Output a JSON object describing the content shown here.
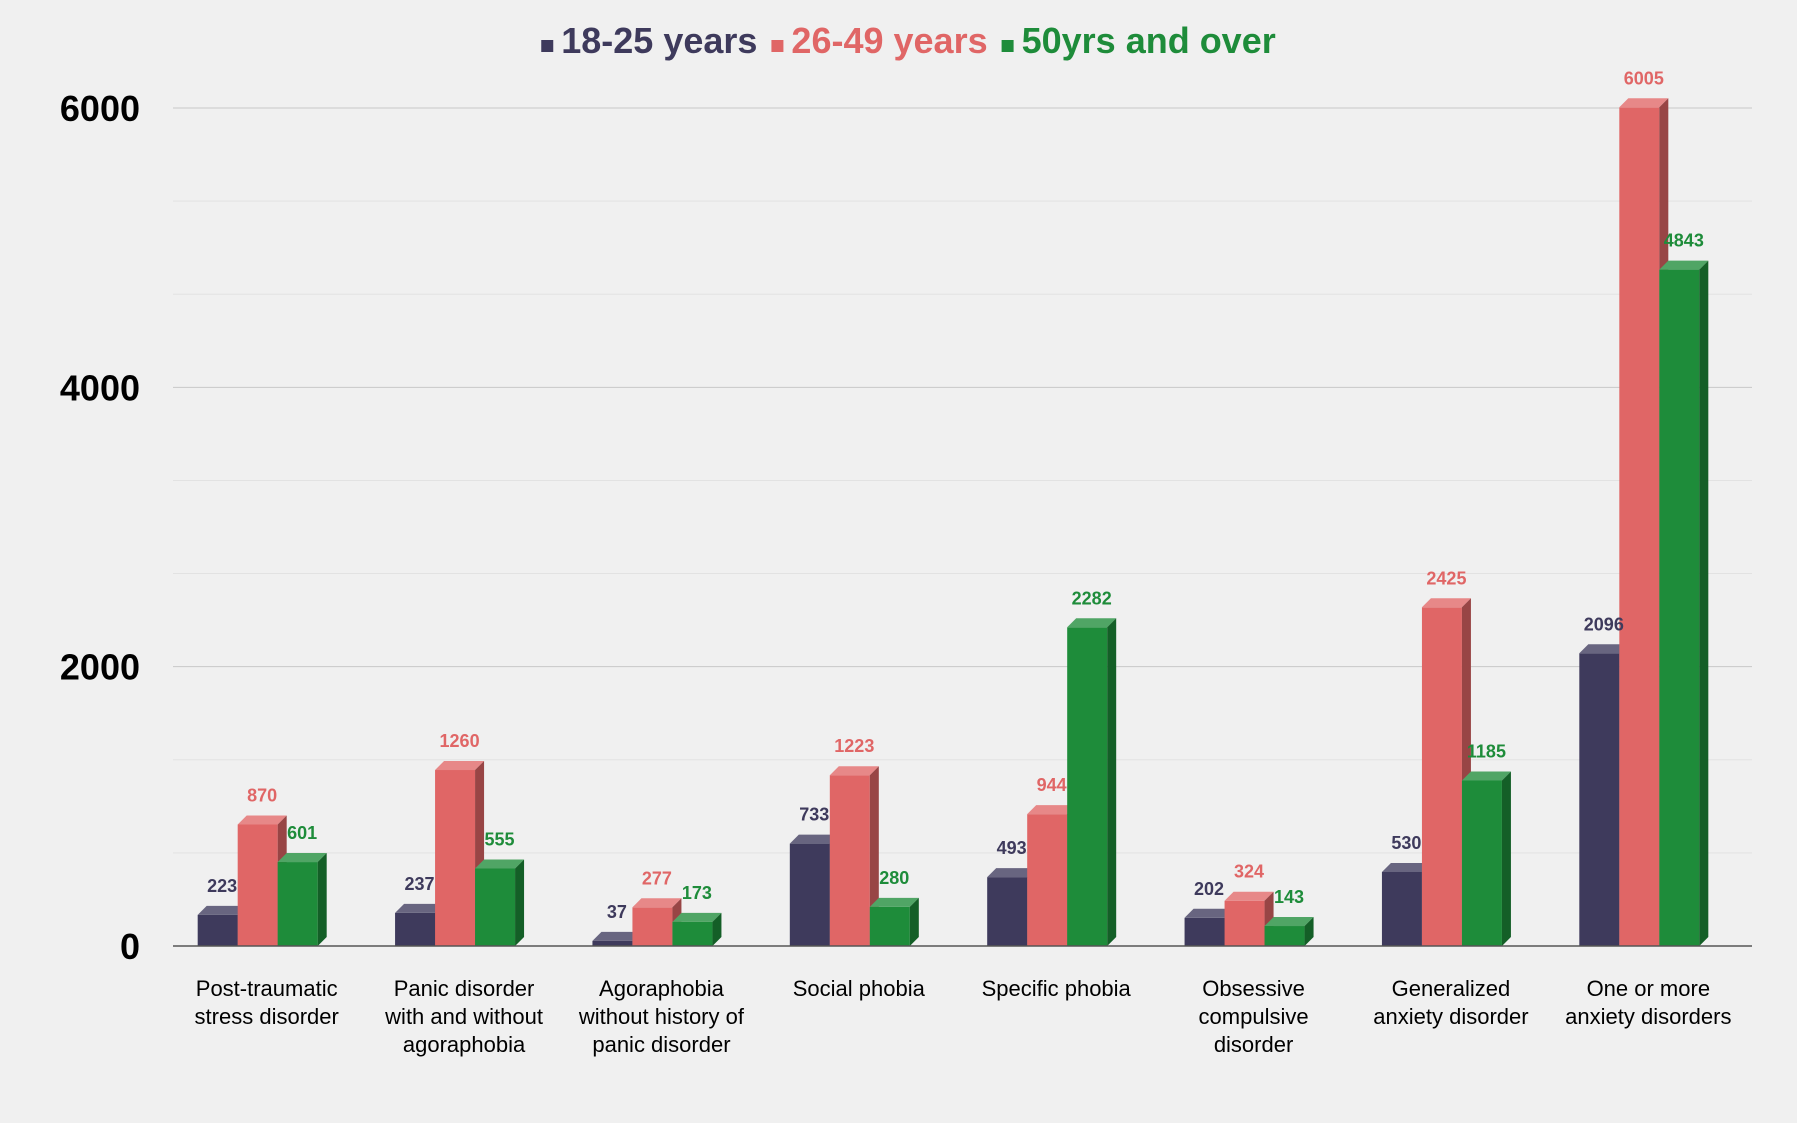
{
  "chart_data": {
    "type": "bar",
    "categories": [
      [
        "Post-traumatic",
        "stress disorder"
      ],
      [
        "Panic disorder",
        "with and without",
        "agoraphobia"
      ],
      [
        "Agoraphobia",
        "without history of",
        "panic disorder"
      ],
      [
        "Social phobia"
      ],
      [
        "Specific phobia"
      ],
      [
        "Obsessive",
        "compulsive",
        "disorder"
      ],
      [
        "Generalized",
        "anxiety disorder"
      ],
      [
        "One or more",
        "anxiety disorders"
      ]
    ],
    "series": [
      {
        "name": "18-25 years",
        "color": "#3e3a5c",
        "values": [
          223,
          237,
          37,
          733,
          493,
          202,
          530,
          2096
        ]
      },
      {
        "name": "26-49 years",
        "color": "#e06666",
        "values": [
          870,
          1260,
          277,
          1223,
          944,
          324,
          2425,
          6005
        ]
      },
      {
        "name": "50yrs and over",
        "color": "#1e8c3a",
        "values": [
          601,
          555,
          173,
          280,
          2282,
          143,
          1185,
          4843
        ]
      }
    ],
    "ylim": [
      0,
      6000
    ],
    "yticks": [
      0,
      2000,
      4000,
      6000
    ],
    "grid": true,
    "legend_position": "top",
    "title": "",
    "xlabel": "",
    "ylabel": ""
  }
}
